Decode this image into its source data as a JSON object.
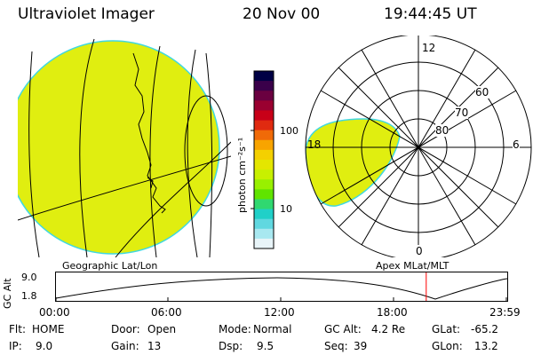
{
  "header": {
    "instrument": "Ultraviolet Imager",
    "date": "20 Nov 00",
    "time": "19:44:45 UT"
  },
  "colorbar": {
    "unit_label": "photon cm⁻²s⁻¹",
    "tick_100": "100",
    "tick_10": "10",
    "colors": [
      "#000044",
      "#3a004a",
      "#6a0040",
      "#9a0030",
      "#c80018",
      "#e02a10",
      "#f06a08",
      "#f8a400",
      "#f4d000",
      "#e4e600",
      "#c8f000",
      "#98f000",
      "#60e400",
      "#30d870",
      "#20d0c8",
      "#60d8e0",
      "#a8e8f0",
      "#e8f4f8"
    ]
  },
  "left_map": {
    "caption": "Geographic Lat/Lon",
    "fill_color": "#e0ee10"
  },
  "polar_plot": {
    "caption": "Apex MLat/MLT",
    "mlt_labels": {
      "top": "12",
      "left": "18",
      "right": "6",
      "bottom": "0"
    },
    "lat_labels": {
      "outer": "60",
      "mid": "70",
      "inner": "80"
    }
  },
  "altitude_plot": {
    "axis_title": "GC Alt",
    "ytick_top": "9.0",
    "ytick_bottom": "1.8",
    "xticks": [
      "00:00",
      "06:00",
      "12:00",
      "18:00",
      "23:59"
    ],
    "marker_color": "#ff0000",
    "marker_time_fraction": 0.822
  },
  "status": {
    "row1": {
      "flt_key": "Flt:",
      "flt_val": "HOME",
      "door_key": "Door:",
      "door_val": "Open",
      "mode_key": "Mode:",
      "mode_val": "Normal",
      "gcalt_key": "GC Alt:",
      "gcalt_val": "4.2 Re",
      "glat_key": "GLat:",
      "glat_val": "-65.2"
    },
    "row2": {
      "ip_key": "IP:",
      "ip_val": "9.0",
      "gain_key": "Gain:",
      "gain_val": "13",
      "dsp_key": "Dsp:",
      "dsp_val": "9.5",
      "seq_key": "Seq:",
      "seq_val": "39",
      "glon_key": "GLon:",
      "glon_val": "13.2"
    }
  }
}
